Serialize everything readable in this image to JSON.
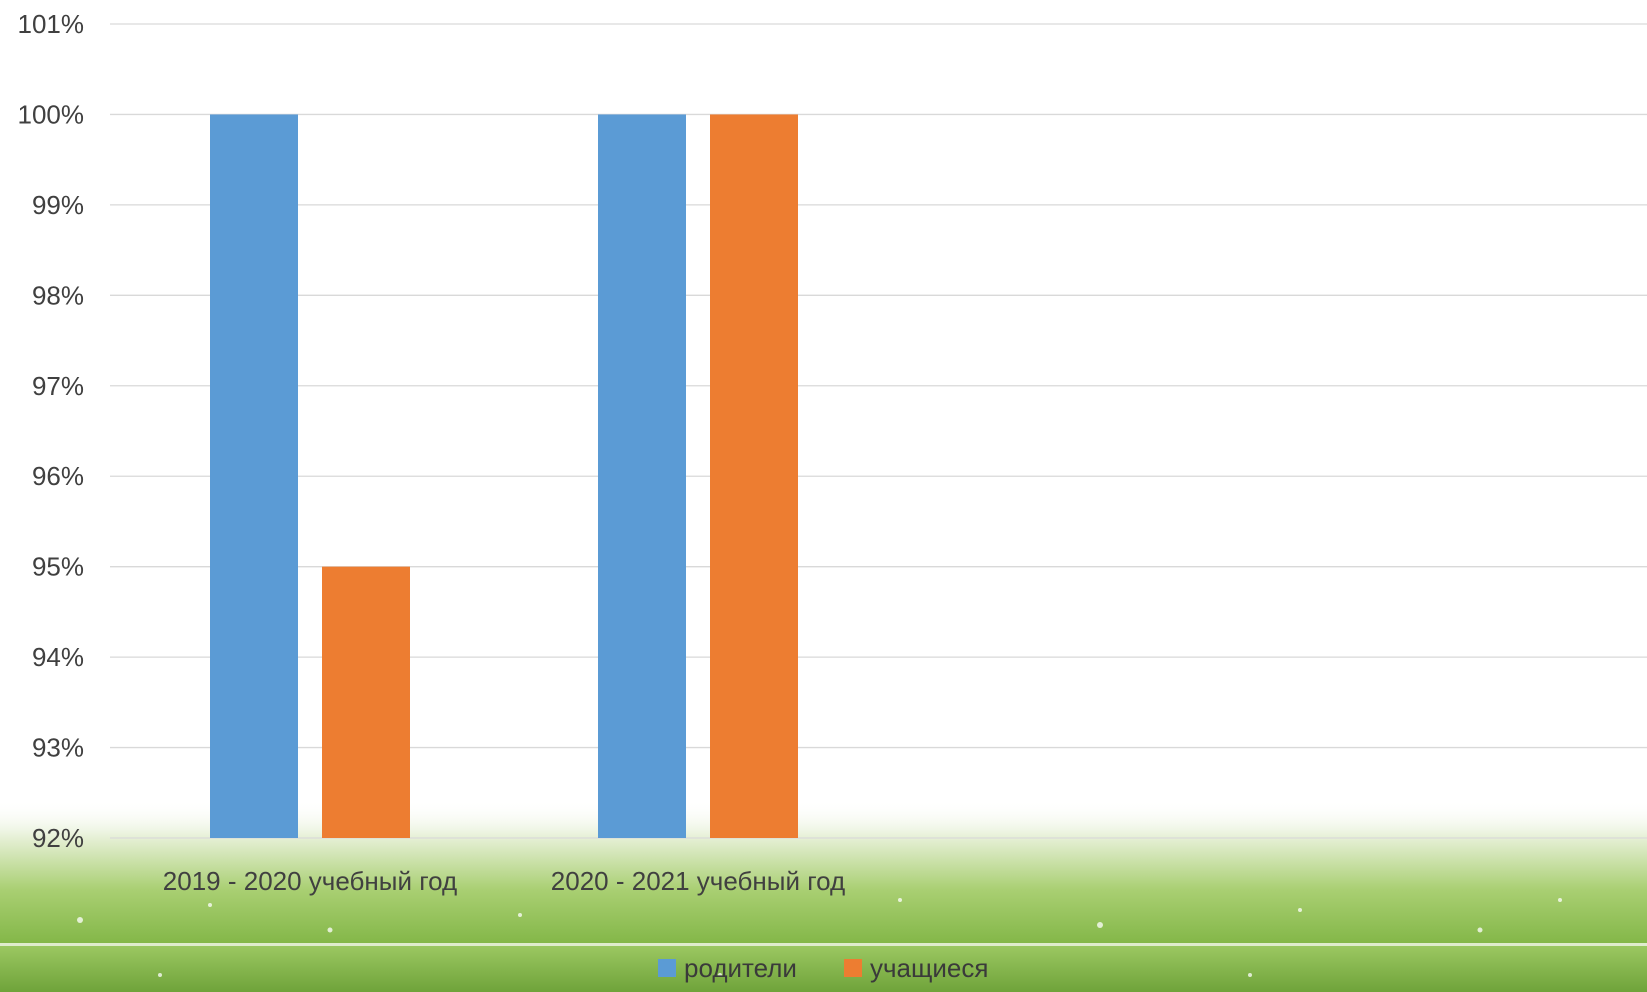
{
  "chart_data": {
    "type": "bar",
    "categories": [
      "2019 - 2020 учебный год",
      "2020 - 2021 учебный год"
    ],
    "series": [
      {
        "name": "родители",
        "values": [
          100,
          100
        ],
        "color": "#5B9BD5"
      },
      {
        "name": "учащиеся",
        "values": [
          95,
          100
        ],
        "color": "#ED7D31"
      }
    ],
    "ylim": [
      92,
      101
    ],
    "yticks": [
      92,
      93,
      94,
      95,
      96,
      97,
      98,
      99,
      100,
      101
    ],
    "ytick_labels": [
      "92%",
      "93%",
      "94%",
      "95%",
      "96%",
      "97%",
      "98%",
      "99%",
      "100%",
      "101%"
    ],
    "grid": true,
    "legend_position": "bottom",
    "colors": {
      "gridline": "#d9d9d9",
      "footer_green": "#8cbf4f",
      "footer_dark": "#6fa33a"
    }
  }
}
